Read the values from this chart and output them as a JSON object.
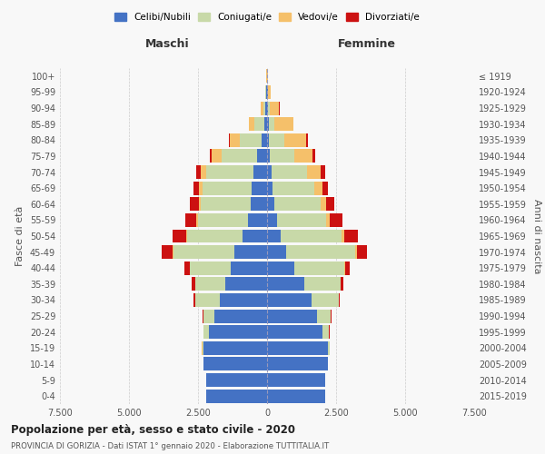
{
  "age_groups": [
    "0-4",
    "5-9",
    "10-14",
    "15-19",
    "20-24",
    "25-29",
    "30-34",
    "35-39",
    "40-44",
    "45-49",
    "50-54",
    "55-59",
    "60-64",
    "65-69",
    "70-74",
    "75-79",
    "80-84",
    "85-89",
    "90-94",
    "95-99",
    "100+"
  ],
  "birth_years": [
    "2015-2019",
    "2010-2014",
    "2005-2009",
    "2000-2004",
    "1995-1999",
    "1990-1994",
    "1985-1989",
    "1980-1984",
    "1975-1979",
    "1970-1974",
    "1965-1969",
    "1960-1964",
    "1955-1959",
    "1950-1954",
    "1945-1949",
    "1940-1944",
    "1935-1939",
    "1930-1934",
    "1925-1929",
    "1920-1924",
    "≤ 1919"
  ],
  "colors": {
    "celibi": "#4472c4",
    "coniugati": "#c8d9a8",
    "vedovi": "#f5c06a",
    "divorziati": "#cc1111"
  },
  "maschi": {
    "celibi": [
      2200,
      2200,
      2300,
      2300,
      2100,
      1900,
      1700,
      1500,
      1300,
      1200,
      900,
      700,
      600,
      550,
      500,
      350,
      200,
      100,
      60,
      40,
      10
    ],
    "coniugati": [
      2,
      5,
      10,
      50,
      200,
      400,
      900,
      1100,
      1500,
      2200,
      2000,
      1800,
      1800,
      1800,
      1700,
      1300,
      800,
      350,
      80,
      20,
      5
    ],
    "vedovi": [
      1,
      1,
      1,
      2,
      5,
      5,
      3,
      5,
      10,
      20,
      40,
      60,
      80,
      120,
      200,
      350,
      350,
      200,
      80,
      20,
      5
    ],
    "divorziati": [
      0,
      0,
      1,
      2,
      5,
      20,
      50,
      120,
      180,
      380,
      480,
      400,
      300,
      180,
      150,
      80,
      30,
      10,
      5,
      2,
      0
    ]
  },
  "femmine": {
    "celibi": [
      2100,
      2100,
      2200,
      2200,
      2000,
      1800,
      1600,
      1350,
      1000,
      700,
      500,
      350,
      250,
      200,
      150,
      100,
      80,
      50,
      40,
      30,
      8
    ],
    "coniugati": [
      2,
      5,
      10,
      60,
      250,
      500,
      1000,
      1300,
      1800,
      2500,
      2200,
      1800,
      1700,
      1500,
      1300,
      900,
      550,
      200,
      50,
      10,
      2
    ],
    "vedovi": [
      0,
      0,
      1,
      1,
      3,
      5,
      8,
      15,
      30,
      50,
      80,
      120,
      200,
      300,
      500,
      650,
      800,
      700,
      350,
      100,
      30
    ],
    "divorziati": [
      0,
      0,
      1,
      2,
      5,
      20,
      40,
      100,
      150,
      380,
      500,
      450,
      300,
      200,
      150,
      100,
      40,
      15,
      5,
      2,
      0
    ]
  },
  "xlim": 7500,
  "title": "Popolazione per età, sesso e stato civile - 2020",
  "subtitle": "PROVINCIA DI GORIZIA - Dati ISTAT 1° gennaio 2020 - Elaborazione TUTTITALIA.IT",
  "xlabel_left": "Maschi",
  "xlabel_right": "Femmine",
  "ylabel_left": "Fasce di età",
  "ylabel_right": "Anni di nascita",
  "bg_color": "#f8f8f8",
  "grid_color": "#cccccc",
  "xtick_vals": [
    -7500,
    -5000,
    -2500,
    0,
    2500,
    5000,
    7500
  ],
  "xtick_labels": [
    "7.500",
    "5.000",
    "2.500",
    "0",
    "2.500",
    "5.000",
    "7.500"
  ]
}
